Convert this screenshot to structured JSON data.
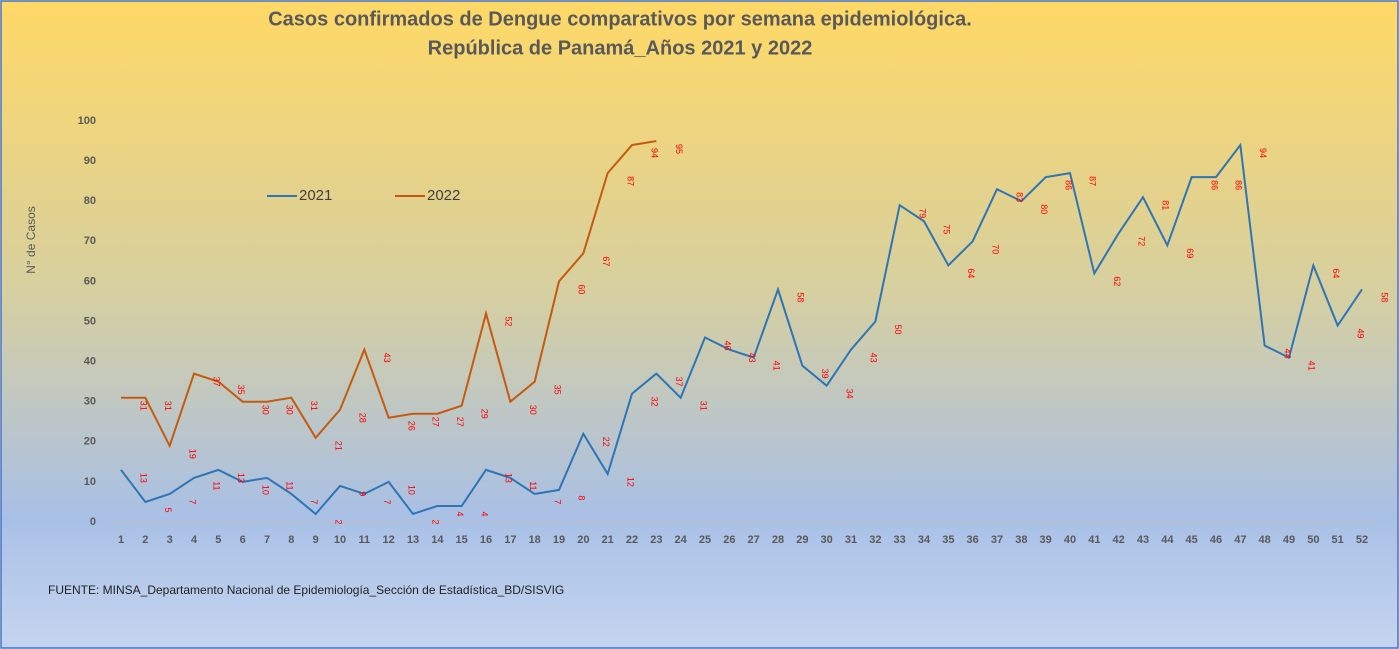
{
  "chart_data": {
    "type": "line",
    "title": "Casos confirmados de Dengue comparativos por semana epidemiológica.",
    "subtitle": "República de Panamá_Años 2021 y 2022",
    "y_label": "N° de Casos",
    "source": "FUENTE: MINSA_Departamento Nacional de Epidemiología_Sección de Estadística_BD/SISVIG",
    "categories": [
      1,
      2,
      3,
      4,
      5,
      6,
      7,
      8,
      9,
      10,
      11,
      12,
      13,
      14,
      15,
      16,
      17,
      18,
      19,
      20,
      21,
      22,
      23,
      24,
      25,
      26,
      27,
      28,
      29,
      30,
      31,
      32,
      33,
      34,
      35,
      36,
      37,
      38,
      39,
      40,
      41,
      42,
      43,
      44,
      45,
      46,
      47,
      48,
      49,
      50,
      51,
      52
    ],
    "series": [
      {
        "name": "2021",
        "color": "#2e75b6",
        "values": [
          13,
          5,
          7,
          11,
          13,
          10,
          11,
          7,
          2,
          9,
          7,
          10,
          2,
          4,
          4,
          13,
          11,
          7,
          8,
          22,
          12,
          32,
          37,
          31,
          46,
          43,
          41,
          58,
          39,
          34,
          43,
          50,
          79,
          75,
          64,
          70,
          83,
          80,
          86,
          87,
          62,
          72,
          81,
          69,
          86,
          86,
          94,
          44,
          41,
          64,
          49,
          58
        ]
      },
      {
        "name": "2022",
        "color": "#c55a11",
        "values": [
          31,
          31,
          19,
          37,
          35,
          30,
          30,
          31,
          21,
          28,
          43,
          26,
          27,
          27,
          29,
          52,
          30,
          35,
          60,
          67,
          87,
          94,
          95,
          null,
          null,
          null,
          null,
          null,
          null,
          null,
          null,
          null,
          null,
          null,
          null,
          null,
          null,
          null,
          null,
          null,
          null,
          null,
          null,
          null,
          null,
          null,
          null,
          null,
          null,
          null,
          null,
          null
        ]
      }
    ],
    "ylim": [
      0,
      100
    ],
    "yticks": [
      0,
      10,
      20,
      30,
      40,
      50,
      60,
      70,
      80,
      90,
      100
    ],
    "label_color": "#ff0000",
    "legend": "upper left"
  }
}
